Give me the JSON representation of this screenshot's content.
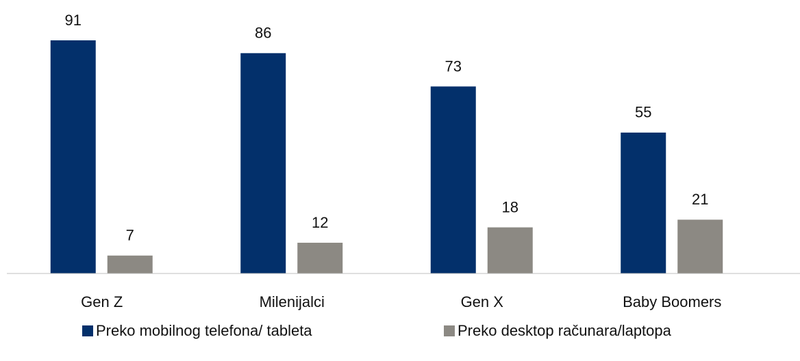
{
  "chart_data": {
    "type": "bar",
    "categories": [
      "Gen Z",
      "Milenijalci",
      "Gen X",
      "Baby Boomers"
    ],
    "series": [
      {
        "name": "Preko mobilnog telefona/ tableta",
        "color": "#03306b",
        "values": [
          91,
          86,
          73,
          55
        ]
      },
      {
        "name": "Preko desktop računara/laptopa",
        "color": "#8c8983",
        "values": [
          7,
          12,
          18,
          21
        ]
      }
    ],
    "legend": "bottom"
  }
}
